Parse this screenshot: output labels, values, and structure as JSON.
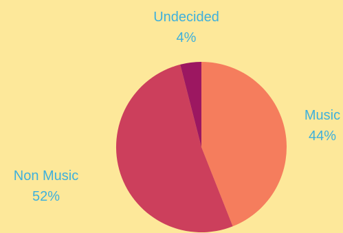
{
  "chart_data": {
    "type": "pie",
    "title": "",
    "slices": [
      {
        "label": "Music",
        "value": 44,
        "value_label": "44%",
        "color": "#f57d5d"
      },
      {
        "label": "Non Music",
        "value": 52,
        "value_label": "52%",
        "color": "#cc3f5c"
      },
      {
        "label": "Undecided",
        "value": 4,
        "value_label": "4%",
        "color": "#9c1761"
      }
    ],
    "label_color": "#3eb0dc",
    "background_color": "#fde89a",
    "start": "top",
    "direction": "clockwise"
  }
}
